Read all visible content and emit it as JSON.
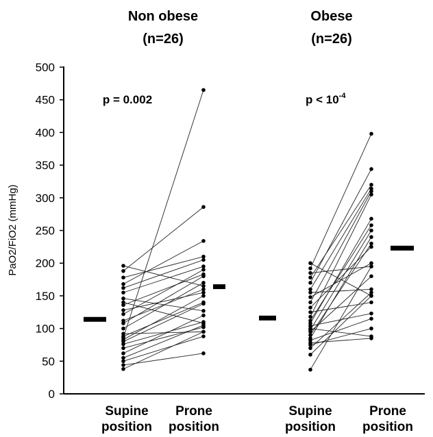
{
  "chart_data": {
    "type": "scatter",
    "ylabel": "PaO2/FiO2 (mmHg)",
    "ylim": [
      0,
      500
    ],
    "y_ticks": [
      0,
      50,
      100,
      150,
      200,
      250,
      300,
      350,
      400,
      450,
      500
    ],
    "grid": false,
    "groups": [
      {
        "title_line1": "Non obese",
        "title_line2": "(n=26)",
        "p_value_text": "p = 0.002",
        "p_value_superscript": "",
        "categories": [
          {
            "line1": "Supine",
            "line2": "position"
          },
          {
            "line1": "Prone",
            "line2": "position"
          }
        ],
        "mean_supine": 114,
        "mean_prone": 164,
        "pairs": [
          [
            38,
            95
          ],
          [
            44,
            62
          ],
          [
            50,
            88
          ],
          [
            55,
            105
          ],
          [
            62,
            120
          ],
          [
            70,
            102
          ],
          [
            76,
            110
          ],
          [
            80,
            138
          ],
          [
            83,
            150
          ],
          [
            86,
            465
          ],
          [
            88,
            140
          ],
          [
            92,
            95
          ],
          [
            100,
            170
          ],
          [
            108,
            180
          ],
          [
            112,
            160
          ],
          [
            122,
            190
          ],
          [
            128,
            155
          ],
          [
            136,
            183
          ],
          [
            140,
            108
          ],
          [
            146,
            127
          ],
          [
            155,
            195
          ],
          [
            162,
            205
          ],
          [
            168,
            234
          ],
          [
            178,
            210
          ],
          [
            188,
            286
          ],
          [
            196,
            165
          ]
        ]
      },
      {
        "title_line1": "Obese",
        "title_line2": "(n=26)",
        "p_value_text": "p < 10",
        "p_value_superscript": "-4",
        "categories": [
          {
            "line1": "Supine",
            "line2": "position"
          },
          {
            "line1": "Prone",
            "line2": "position"
          }
        ],
        "mean_supine": 116,
        "mean_prone": 223,
        "pairs": [
          [
            37,
            195
          ],
          [
            60,
            150
          ],
          [
            70,
            155
          ],
          [
            75,
            100
          ],
          [
            78,
            85
          ],
          [
            82,
            115
          ],
          [
            85,
            240
          ],
          [
            90,
            230
          ],
          [
            95,
            180
          ],
          [
            98,
            250
          ],
          [
            100,
            88
          ],
          [
            104,
            123
          ],
          [
            108,
            268
          ],
          [
            112,
            258
          ],
          [
            118,
            305
          ],
          [
            125,
            140
          ],
          [
            132,
            225
          ],
          [
            140,
            310
          ],
          [
            148,
            200
          ],
          [
            155,
            160
          ],
          [
            160,
            314
          ],
          [
            170,
            344
          ],
          [
            178,
            320
          ],
          [
            185,
            195
          ],
          [
            192,
            398
          ],
          [
            200,
            150
          ]
        ]
      }
    ]
  }
}
